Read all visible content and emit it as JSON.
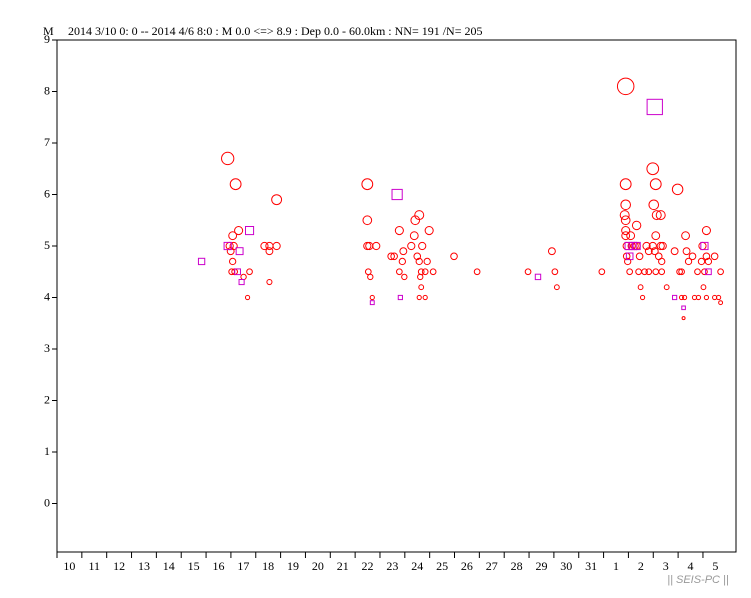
{
  "chart_data": {
    "type": "scatter",
    "title": "2014 3/10 0: 0 -- 2014 4/6 8:0  : M 0.0 <=> 8.9   : Dep 0.0 - 60.0km :  NN= 191 /N= 205",
    "y_label": "M",
    "watermark": "|| SEIS-PC ||",
    "xlim": [
      10,
      37.33
    ],
    "ylim": [
      -1,
      9
    ],
    "yticks": [
      0,
      1,
      2,
      3,
      4,
      5,
      6,
      7,
      8,
      9
    ],
    "xticks": [
      10,
      11,
      12,
      13,
      14,
      15,
      16,
      17,
      18,
      19,
      20,
      21,
      22,
      23,
      24,
      25,
      26,
      27,
      28,
      29,
      30,
      31,
      {
        "value": 32,
        "label": "1"
      },
      {
        "value": 33,
        "label": "2"
      },
      {
        "value": 34,
        "label": "3"
      },
      {
        "value": 35,
        "label": "4"
      },
      {
        "value": 36,
        "label": "5"
      }
    ],
    "series": [
      {
        "marker": "circle",
        "color": "#ff0000",
        "x": [
          16.87,
          17.19,
          17.31,
          17.07,
          16.95,
          17.11,
          16.99,
          17.03,
          17.15,
          17.07,
          17.75,
          17.67,
          17.51,
          18.35,
          18.55,
          18.84,
          18.84,
          18.55,
          18.55,
          22.49,
          22.49,
          22.49,
          22.57,
          22.85,
          22.53,
          22.61,
          22.69,
          23.78,
          23.45,
          23.57,
          23.78,
          23.9,
          23.94,
          24.26,
          23.98,
          24.58,
          24.42,
          24.38,
          24.98,
          24.7,
          24.5,
          24.58,
          24.66,
          24.62,
          24.82,
          24.9,
          25.14,
          24.66,
          24.58,
          24.82,
          25.98,
          26.91,
          28.96,
          29.92,
          30.04,
          30.12,
          31.93,
          32.89,
          32.89,
          32.89,
          32.85,
          32.89,
          32.89,
          32.89,
          32.93,
          32.93,
          32.97,
          33.05,
          33.09,
          33.13,
          33.25,
          33.33,
          33.33,
          33.45,
          33.41,
          33.49,
          33.57,
          33.65,
          33.73,
          33.82,
          33.98,
          34.1,
          34.02,
          34.14,
          34.3,
          34.1,
          33.98,
          34.3,
          34.38,
          34.06,
          34.22,
          34.34,
          34.1,
          34.54,
          33.82,
          34.34,
          34.98,
          34.86,
          35.06,
          35.14,
          35.3,
          35.34,
          35.14,
          35.26,
          35.42,
          35.58,
          35.22,
          35.78,
          35.82,
          35.66,
          36.02,
          35.94,
          36.06,
          36.14,
          36.14,
          35.98,
          36.22,
          36.14,
          36.47,
          36.47,
          36.71,
          36.63,
          36.71
        ],
        "values": [
          6.7,
          6.2,
          5.3,
          5.2,
          5.0,
          5.0,
          4.9,
          4.5,
          4.5,
          4.7,
          4.5,
          4.0,
          4.4,
          5.0,
          5.0,
          5.0,
          5.9,
          4.3,
          4.9,
          6.2,
          5.5,
          5.0,
          5.0,
          5.0,
          4.5,
          4.4,
          4.0,
          5.3,
          4.8,
          4.8,
          4.5,
          4.7,
          4.9,
          5.0,
          4.4,
          5.6,
          5.5,
          5.2,
          5.3,
          5.0,
          4.8,
          4.7,
          4.5,
          4.4,
          4.5,
          4.7,
          4.5,
          4.2,
          4.0,
          4.0,
          4.8,
          4.5,
          4.5,
          4.9,
          4.5,
          4.2,
          4.5,
          8.1,
          6.2,
          5.8,
          5.6,
          5.5,
          5.3,
          5.2,
          5.0,
          4.8,
          4.7,
          4.5,
          5.2,
          5.0,
          5.0,
          5.0,
          5.4,
          4.8,
          4.5,
          4.2,
          4.0,
          4.5,
          5.0,
          4.5,
          6.5,
          6.2,
          5.8,
          5.6,
          5.6,
          5.2,
          5.0,
          5.0,
          5.0,
          4.9,
          4.8,
          4.5,
          4.5,
          4.2,
          4.9,
          4.7,
          6.1,
          4.9,
          4.5,
          4.0,
          5.2,
          4.9,
          4.5,
          4.0,
          4.7,
          4.8,
          3.6,
          4.5,
          4.0,
          4.0,
          4.2,
          4.7,
          4.5,
          4.8,
          5.3,
          5.0,
          4.7,
          4.0,
          4.8,
          4.0,
          4.5,
          4.0,
          3.9
        ]
      },
      {
        "marker": "square",
        "color": "#cc00cc",
        "x": [
          15.82,
          16.87,
          17.35,
          17.75,
          17.43,
          17.27,
          22.69,
          23.69,
          23.82,
          29.36,
          33.01,
          33.05,
          33.17,
          33.33,
          34.06,
          34.86,
          35.22,
          36.06,
          36.22
        ],
        "values": [
          4.7,
          5.0,
          4.9,
          5.3,
          4.3,
          4.5,
          3.9,
          6.0,
          4.0,
          4.4,
          5.0,
          4.8,
          5.0,
          5.0,
          7.7,
          4.0,
          3.8,
          5.0,
          4.5
        ]
      }
    ]
  }
}
